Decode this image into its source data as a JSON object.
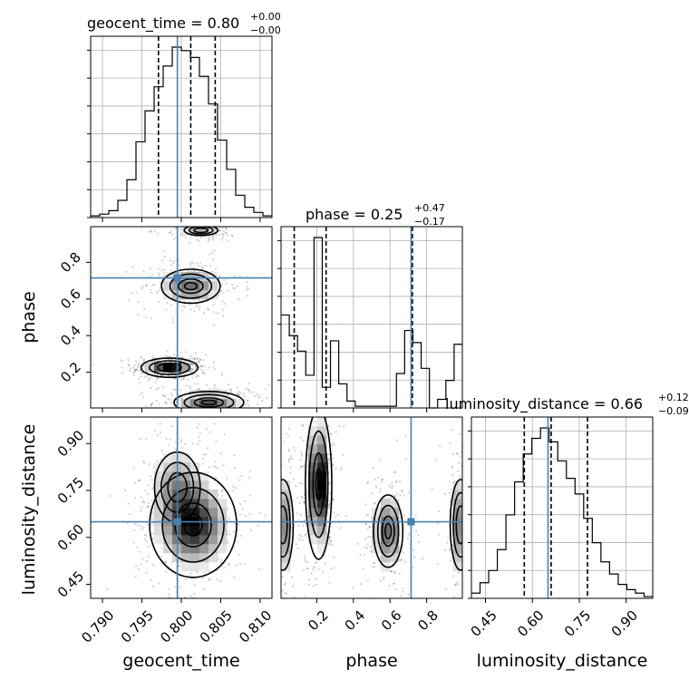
{
  "chart_data": {
    "type": "corner",
    "parameters": [
      "geocent_time",
      "phase",
      "luminosity_distance"
    ],
    "truth_color": "#4682b4",
    "truths": {
      "geocent_time": 0.7995,
      "phase": 0.715,
      "luminosity_distance": 0.65
    },
    "titles": {
      "geocent_time": {
        "prefix": "geocent_time = 0.80",
        "plus": "+0.00",
        "minus": "−0.00"
      },
      "phase": {
        "prefix": "phase = 0.25",
        "plus": "+0.47",
        "minus": "−0.17"
      },
      "luminosity_distance": {
        "prefix": "luminosity_distance = 0.66",
        "plus": "+0.12",
        "minus": "−0.09"
      }
    },
    "ranges": {
      "geocent_time": [
        0.7885,
        0.8115
      ],
      "phase": [
        0.005,
        0.995
      ],
      "luminosity_distance": [
        0.405,
        0.985
      ]
    },
    "ticks": {
      "geocent_time": {
        "values": [
          0.79,
          0.795,
          0.8,
          0.805,
          0.81
        ],
        "labels": [
          "0.790",
          "0.795",
          "0.800",
          "0.805",
          "0.810"
        ]
      },
      "phase": {
        "values": [
          0.2,
          0.4,
          0.6,
          0.8
        ],
        "labels": [
          "0.2",
          "0.4",
          "0.6",
          "0.8"
        ]
      },
      "luminosity_distance": {
        "values": [
          0.45,
          0.6,
          0.75,
          0.9
        ],
        "labels": [
          "0.45",
          "0.60",
          "0.75",
          "0.90"
        ]
      }
    },
    "axis_labels": {
      "x": [
        "geocent_time",
        "phase",
        "luminosity_distance"
      ],
      "y": [
        "phase",
        "luminosity_distance"
      ]
    },
    "marginals": {
      "geocent_time": {
        "hist": [
          1,
          2,
          4,
          10,
          22,
          44,
          62,
          76,
          88,
          99,
          97,
          93,
          82,
          66,
          45,
          28,
          13,
          6,
          3,
          1
        ],
        "quantiles": [
          0.7971,
          0.8012,
          0.8043
        ]
      },
      "phase": {
        "hist": [
          54,
          42,
          33,
          19,
          99,
          12,
          39,
          14,
          4,
          1,
          1,
          1,
          1,
          1,
          20,
          45,
          38,
          23,
          0,
          5,
          16,
          37
        ],
        "quantiles": [
          0.077,
          0.251,
          0.722
        ]
      },
      "luminosity_distance": {
        "hist": [
          3,
          9,
          16,
          28,
          48,
          67,
          83,
          92,
          98,
          90,
          79,
          69,
          60,
          46,
          32,
          21,
          14,
          8,
          5,
          3,
          1
        ],
        "quantiles": [
          0.5741,
          0.66,
          0.7763
        ]
      }
    },
    "joint": {
      "phase_vs_geocent_time": {
        "modes": [
          {
            "x": 0.7985,
            "y": 0.225,
            "sx": 0.0015,
            "sy": 0.022,
            "w": 1.0
          },
          {
            "x": 0.8035,
            "y": 0.035,
            "sx": 0.0022,
            "sy": 0.03,
            "w": 0.7
          },
          {
            "x": 0.8012,
            "y": 0.67,
            "sx": 0.002,
            "sy": 0.05,
            "w": 0.6
          },
          {
            "x": 0.8025,
            "y": 0.975,
            "sx": 0.0015,
            "sy": 0.02,
            "w": 0.35
          }
        ]
      },
      "luminosity_distance_vs_geocent_time": {
        "modes": [
          {
            "x": 0.8015,
            "y": 0.64,
            "sx": 0.0023,
            "sy": 0.07,
            "w": 1.0
          },
          {
            "x": 0.7995,
            "y": 0.76,
            "sx": 0.0018,
            "sy": 0.07,
            "w": 0.45
          }
        ]
      },
      "luminosity_distance_vs_phase": {
        "modes": [
          {
            "x": 0.21,
            "y": 0.77,
            "sx": 0.03,
            "sy": 0.1,
            "w": 1.0
          },
          {
            "x": 0.59,
            "y": 0.62,
            "sx": 0.045,
            "sy": 0.065,
            "w": 0.55
          },
          {
            "x": 0.015,
            "y": 0.64,
            "sx": 0.035,
            "sy": 0.09,
            "w": 0.45
          },
          {
            "x": 0.985,
            "y": 0.64,
            "sx": 0.035,
            "sy": 0.09,
            "w": 0.45
          }
        ]
      }
    },
    "grid": true
  }
}
